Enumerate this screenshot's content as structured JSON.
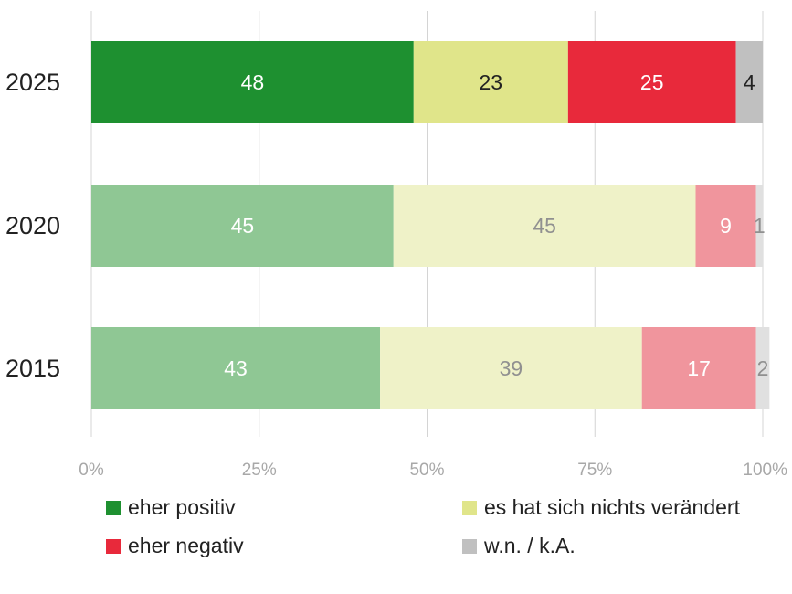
{
  "chart_data": {
    "type": "bar",
    "orientation": "horizontal",
    "stacked": true,
    "categories": [
      "2025",
      "2020",
      "2015"
    ],
    "series": [
      {
        "name": "eher positiv",
        "values": [
          48,
          45,
          43
        ],
        "colors": [
          "#1e9030",
          "#8fc794",
          "#8fc794"
        ],
        "label_colors": [
          "#ffffff",
          "#ffffff",
          "#ffffff"
        ]
      },
      {
        "name": "es hat sich nichts verändert",
        "values": [
          23,
          45,
          39
        ],
        "colors": [
          "#e0e58a",
          "#eff2c8",
          "#eff2c8"
        ],
        "label_colors": [
          "#222222",
          "#909090",
          "#909090"
        ]
      },
      {
        "name": "eher negativ",
        "values": [
          25,
          9,
          17
        ],
        "colors": [
          "#e8293b",
          "#f0959d",
          "#f0959d"
        ],
        "label_colors": [
          "#ffffff",
          "#ffffff",
          "#ffffff"
        ]
      },
      {
        "name": "w.n. / k.A.",
        "values": [
          4,
          1,
          2
        ],
        "colors": [
          "#c0c0c0",
          "#e0e0e0",
          "#e0e0e0"
        ],
        "label_colors": [
          "#222222",
          "#909090",
          "#909090"
        ]
      }
    ],
    "xlim": [
      0,
      100
    ],
    "x_ticks": [
      "0%",
      "25%",
      "50%",
      "75%",
      "100%"
    ],
    "grid": true,
    "legend_placement": "bottom"
  },
  "legend": [
    {
      "label": "eher positiv",
      "color": "#1e9030"
    },
    {
      "label": "es hat sich nichts verändert",
      "color": "#e0e58a"
    },
    {
      "label": "eher negativ",
      "color": "#e8293b"
    },
    {
      "label": "w.n. / k.A.",
      "color": "#c0c0c0"
    }
  ]
}
